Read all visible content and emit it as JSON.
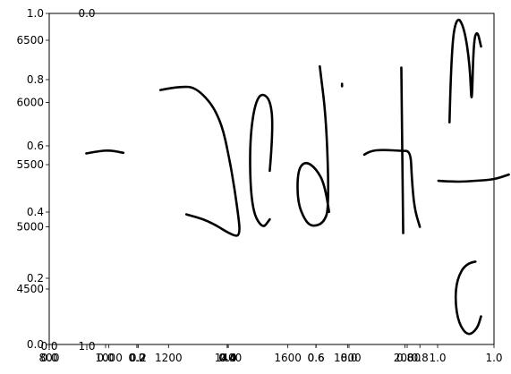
{
  "chart_data": {
    "type": "line",
    "title": "",
    "xlabel": "",
    "ylabel": "",
    "plot_area": {
      "background": "#ffffff",
      "frame_color": "#000000",
      "grid": false,
      "legend": "none"
    },
    "axes_layers": [
      {
        "name": "primary-axes",
        "x_ticks": [
          "0.0",
          "0.2",
          "0.4",
          "0.6",
          "0.8",
          "1.0"
        ],
        "x_lim": [
          0,
          1
        ],
        "y_ticks": [
          "0.0",
          "0.2",
          "0.4",
          "0.6",
          "0.8",
          "1.0"
        ],
        "y_lim": [
          0,
          1
        ]
      },
      {
        "name": "sub-axes-1",
        "x_ticks": [
          "0.0",
          "1.0"
        ],
        "x_lim": [
          0,
          1
        ],
        "y_ticks": [
          "0.0"
        ],
        "y_lim": [
          0,
          1
        ]
      },
      {
        "name": "sub-axes-2",
        "x_ticks": [
          "0.0",
          "0.2"
        ],
        "x_lim": [
          0,
          0.2
        ],
        "y_ticks": [],
        "y_lim": [
          0,
          1
        ]
      },
      {
        "name": "sub-axes-3",
        "x_ticks": [
          "0.0",
          "0.4"
        ],
        "x_lim": [
          0,
          0.4
        ],
        "y_ticks": [],
        "y_lim": [
          0,
          1
        ]
      },
      {
        "name": "sub-axes-4",
        "x_ticks": [
          "0.0",
          "0.6"
        ],
        "x_lim": [
          0,
          0.6
        ],
        "y_ticks": [],
        "y_lim": [
          0,
          1
        ]
      },
      {
        "name": "sub-axes-5",
        "x_ticks": [
          "0.0",
          "0.8",
          "1.0"
        ],
        "x_lim": [
          0,
          1
        ],
        "y_ticks": [],
        "y_lim": [
          0,
          1
        ]
      },
      {
        "name": "data-axes",
        "x_ticks": [
          "800",
          "1000",
          "1200",
          "1400",
          "1600",
          "1800",
          "2000"
        ],
        "x_lim": [
          800,
          2000
        ],
        "y_ticks": [
          "4500",
          "5000",
          "5500",
          "6000",
          "6500"
        ],
        "y_lim": [
          4550,
          6800
        ]
      }
    ],
    "series": [
      {
        "glyph": "~",
        "x": [
          900,
          935,
          965,
          1000
        ],
        "y": [
          5590,
          5610,
          5615,
          5595
        ]
      },
      {
        "glyph": "∫",
        "x": [
          1100,
          1150,
          1200,
          1260,
          1290,
          1310,
          1315,
          1300,
          1230,
          1170
        ],
        "y": [
          6100,
          6130,
          6120,
          5900,
          5500,
          5100,
          4940,
          4920,
          5050,
          5100
        ]
      },
      {
        "glyph": "0",
        "x": [
          1395,
          1405,
          1395,
          1360,
          1340,
          1345,
          1375,
          1395
        ],
        "y": [
          5450,
          5800,
          6050,
          6070,
          5700,
          5150,
          4980,
          5060
        ]
      },
      {
        "glyph": "d",
        "x": [
          1555,
          1545,
          1520,
          1490,
          1470,
          1470,
          1490,
          1510,
          1540,
          1555,
          1548,
          1530
        ],
        "y": [
          5120,
          5330,
          5470,
          5530,
          5450,
          5200,
          5050,
          5000,
          5030,
          5150,
          5850,
          6290
        ]
      },
      {
        "glyph": ".",
        "x": [
          1590,
          1590
        ],
        "y": [
          6150,
          6130
        ]
      },
      {
        "glyph": "π",
        "x": [
          1650,
          1665,
          1700,
          1750,
          1775,
          1778,
          1785,
          1800
        ],
        "y": [
          5580,
          5610,
          5620,
          5610,
          5610,
          5400,
          5150,
          5000
        ]
      },
      {
        "glyph": "π2",
        "x": [
          1750,
          1755
        ],
        "y": [
          6280,
          4950
        ]
      },
      {
        "glyph": "—",
        "x": [
          1850,
          1900,
          1950,
          2000,
          2040
        ],
        "y": [
          5370,
          5360,
          5370,
          5380,
          5420
        ]
      },
      {
        "glyph": "ſ",
        "x": [
          1880,
          1885,
          1900,
          1920,
          1935,
          1940,
          1945,
          1955,
          1965
        ],
        "y": [
          5840,
          6450,
          6700,
          6600,
          6300,
          5930,
          6500,
          6580,
          6450
        ]
      },
      {
        "glyph": "c",
        "x": [
          1950,
          1925,
          1900,
          1895,
          1905,
          1930,
          1955,
          1965
        ],
        "y": [
          4720,
          4710,
          4580,
          4400,
          4220,
          4120,
          4180,
          4280
        ]
      }
    ]
  }
}
